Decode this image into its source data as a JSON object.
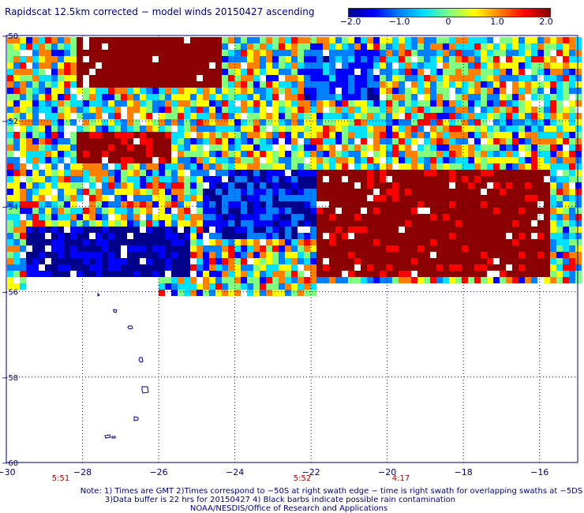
{
  "title": "Rapidscat 12.5km corrected − model winds 20150427 ascending",
  "colorbar": {
    "colors": [
      "#00008b",
      "#0000ff",
      "#0080ff",
      "#00e0ff",
      "#80ff80",
      "#ffff00",
      "#ff8000",
      "#ff0000",
      "#8b0000"
    ],
    "min": -2.0,
    "max": 2.0,
    "ticks": [
      "−2.0",
      "−1.0",
      "0",
      "1.0",
      "2.0"
    ]
  },
  "map": {
    "lon_range": [
      -30,
      -15
    ],
    "lat_range": [
      -50,
      -60
    ],
    "lon_ticks": [
      "−30",
      "−28",
      "−26",
      "−24",
      "−22",
      "−20",
      "−18",
      "−16"
    ],
    "lat_ticks": [
      "−50",
      "−52",
      "−54",
      "−56",
      "−58",
      "−60"
    ],
    "grid": true,
    "coast_color": "#000080",
    "frame_color": "#000080"
  },
  "time_labels": [
    "5:51",
    "5:52",
    "4:17"
  ],
  "notes": {
    "line1": "Note: 1) Times are GMT 2)Times correspond to −50S at right swath edge − time is right swath for overlapping swaths at −5DS",
    "line2": "3)Data buffer is 22 hrs for 20150427 4) Black barbs indicate possible rain contamination",
    "line3": "NOAA/NESDIS/Office of Research and Applications"
  }
}
